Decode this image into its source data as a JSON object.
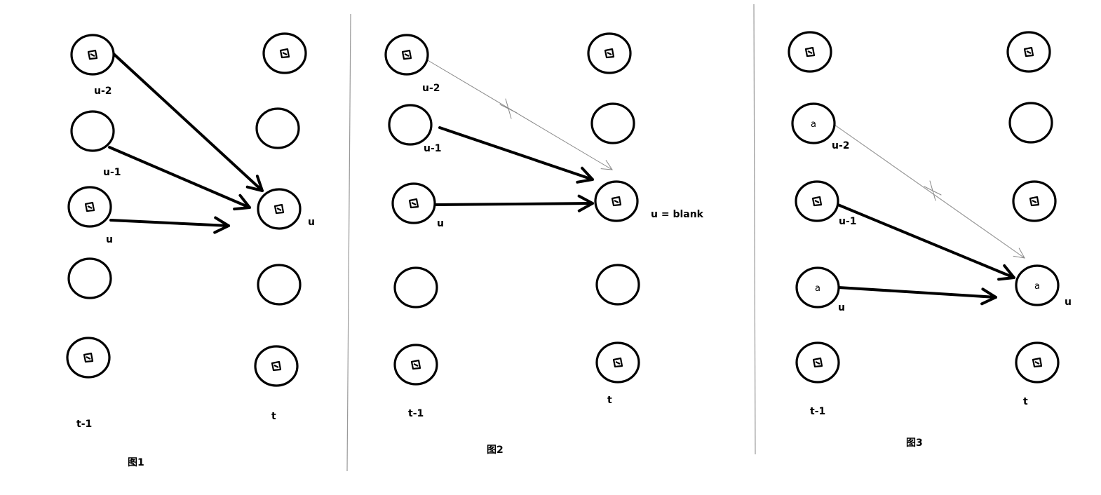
{
  "panels": [
    {
      "caption": "图1",
      "col_left": "t-1",
      "col_right": "t",
      "labels": {
        "l0": "u-2",
        "l1": "u-1",
        "l2": "u",
        "r2": "u"
      },
      "inner": {}
    },
    {
      "caption": "图2",
      "col_left": "t-1",
      "col_right": "t",
      "labels": {
        "l0": "u-2",
        "l1": "u-1",
        "l2": "u",
        "r2": "u = blank"
      },
      "inner": {}
    },
    {
      "caption": "图3",
      "col_left": "t-1",
      "col_right": "t",
      "labels": {
        "l1": "u-2",
        "l2": "u-1",
        "l3": "u",
        "r3": "u"
      },
      "inner": {
        "l1": "a",
        "l3": "a",
        "r3": "a"
      }
    }
  ]
}
